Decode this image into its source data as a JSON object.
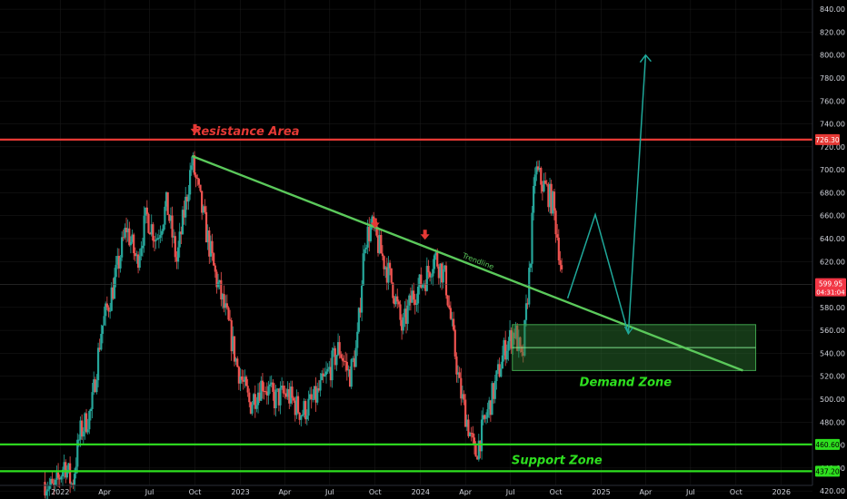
{
  "chart_data": {
    "type": "candlestick",
    "theme": {
      "background": "#000000",
      "up": "#26a69a",
      "down": "#ef5350",
      "grid": "#1c1c1c",
      "text": "#d1d4dc"
    },
    "y_axis": {
      "ylim": [
        413,
        848
      ],
      "ticks": [
        420,
        440,
        460,
        480,
        500,
        520,
        540,
        560,
        580,
        600,
        620,
        640,
        660,
        680,
        700,
        720,
        740,
        760,
        780,
        800,
        820,
        840
      ],
      "tick_labels": [
        "420.00",
        "440.00",
        "460.00",
        "480.00",
        "500.00",
        "520.00",
        "540.00",
        "560.00",
        "580.00",
        "600.00",
        "620.00",
        "640.00",
        "660.00",
        "680.00",
        "700.00",
        "720.00",
        "740.00",
        "760.00",
        "780.00",
        "800.00",
        "820.00",
        "840.00"
      ]
    },
    "x_axis": {
      "start_date": "2021-09-01",
      "end_date": "2026-03-05",
      "ticks": [
        {
          "date": "2022-01-01",
          "label": "2022"
        },
        {
          "date": "2022-04-01",
          "label": "Apr"
        },
        {
          "date": "2022-07-01",
          "label": "Jul"
        },
        {
          "date": "2022-10-01",
          "label": "Oct"
        },
        {
          "date": "2023-01-01",
          "label": "2023"
        },
        {
          "date": "2023-04-01",
          "label": "Apr"
        },
        {
          "date": "2023-07-01",
          "label": "Jul"
        },
        {
          "date": "2023-10-01",
          "label": "Oct"
        },
        {
          "date": "2024-01-01",
          "label": "2024"
        },
        {
          "date": "2024-04-01",
          "label": "Apr"
        },
        {
          "date": "2024-07-01",
          "label": "Jul"
        },
        {
          "date": "2024-10-01",
          "label": "Oct"
        },
        {
          "date": "2025-01-01",
          "label": "2025"
        },
        {
          "date": "2025-04-01",
          "label": "Apr"
        },
        {
          "date": "2025-07-01",
          "label": "Jul"
        },
        {
          "date": "2025-10-01",
          "label": "Oct"
        },
        {
          "date": "2026-01-01",
          "label": "2026"
        }
      ]
    },
    "price_path": [
      [
        "2021-12-01",
        428
      ],
      [
        "2021-12-20",
        420
      ],
      [
        "2022-01-10",
        445
      ],
      [
        "2022-01-25",
        425
      ],
      [
        "2022-02-10",
        470
      ],
      [
        "2022-03-05",
        490
      ],
      [
        "2022-03-25",
        560
      ],
      [
        "2022-04-20",
        600
      ],
      [
        "2022-05-15",
        650
      ],
      [
        "2022-06-05",
        620
      ],
      [
        "2022-06-25",
        660
      ],
      [
        "2022-07-15",
        640
      ],
      [
        "2022-08-05",
        670
      ],
      [
        "2022-08-25",
        620
      ],
      [
        "2022-09-10",
        665
      ],
      [
        "2022-09-25",
        708
      ],
      [
        "2022-10-15",
        665
      ],
      [
        "2022-11-10",
        610
      ],
      [
        "2022-12-05",
        570
      ],
      [
        "2022-12-25",
        530
      ],
      [
        "2023-01-20",
        495
      ],
      [
        "2023-02-15",
        515
      ],
      [
        "2023-03-10",
        500
      ],
      [
        "2023-04-05",
        505
      ],
      [
        "2023-05-05",
        488
      ],
      [
        "2023-06-01",
        500
      ],
      [
        "2023-06-25",
        520
      ],
      [
        "2023-07-20",
        545
      ],
      [
        "2023-08-10",
        520
      ],
      [
        "2023-08-25",
        545
      ],
      [
        "2023-09-10",
        640
      ],
      [
        "2023-09-25",
        650
      ],
      [
        "2023-10-15",
        625
      ],
      [
        "2023-11-05",
        600
      ],
      [
        "2023-11-25",
        560
      ],
      [
        "2023-12-15",
        590
      ],
      [
        "2024-01-10",
        605
      ],
      [
        "2024-01-30",
        625
      ],
      [
        "2024-02-20",
        605
      ],
      [
        "2024-03-05",
        560
      ],
      [
        "2024-03-20",
        510
      ],
      [
        "2024-04-05",
        480
      ],
      [
        "2024-04-20",
        450
      ],
      [
        "2024-05-10",
        480
      ],
      [
        "2024-05-30",
        510
      ],
      [
        "2024-06-20",
        545
      ],
      [
        "2024-07-10",
        560
      ],
      [
        "2024-07-25",
        530
      ],
      [
        "2024-08-10",
        620
      ],
      [
        "2024-08-20",
        700
      ],
      [
        "2024-09-01",
        690
      ],
      [
        "2024-09-15",
        680
      ],
      [
        "2024-09-25",
        670
      ],
      [
        "2024-10-05",
        640
      ],
      [
        "2024-10-15",
        600
      ]
    ],
    "forecast_path": [
      [
        "2024-10-25",
        588
      ],
      [
        "2024-12-20",
        661
      ],
      [
        "2025-02-25",
        557
      ],
      [
        "2025-04-01",
        800
      ]
    ],
    "trendline": {
      "from": [
        "2022-09-25",
        712
      ],
      "to": [
        "2025-10-15",
        525
      ],
      "label": "Trendline"
    },
    "levels": [
      {
        "name": "resistance",
        "value": 726.3,
        "label": "726.30",
        "color": "#e53935",
        "annotation": "Resistance Area"
      },
      {
        "name": "support-upper",
        "value": 460.6,
        "label": "460.60",
        "color": "#2ee01f"
      },
      {
        "name": "support-lower",
        "value": 437.2,
        "label": "437.20",
        "color": "#2ee01f",
        "annotation": "Support Zone"
      }
    ],
    "current_price": {
      "value": 599.95,
      "label": "599.95",
      "countdown": "04:31:04"
    },
    "demand_zone": {
      "from": "2024-07-05",
      "to": "2025-11-10",
      "low": 525,
      "high": 565,
      "mid": 545,
      "label": "Demand Zone"
    },
    "down_markers": [
      [
        "2022-10-01",
        735
      ],
      [
        "2023-10-01",
        653
      ],
      [
        "2024-01-10",
        643
      ]
    ]
  }
}
